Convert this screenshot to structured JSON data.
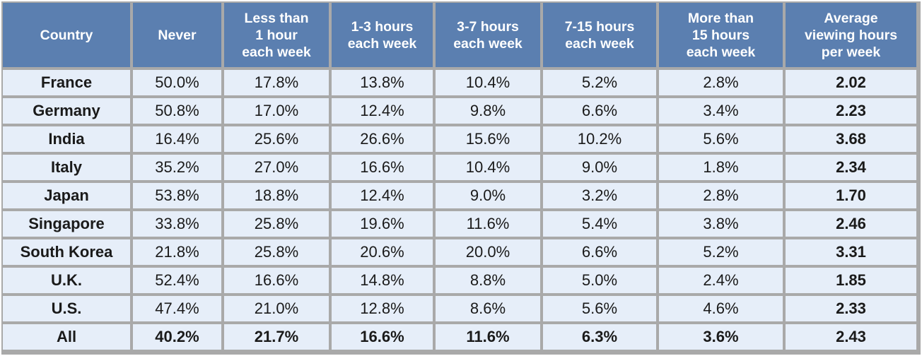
{
  "columns": [
    "Country",
    "Never",
    "Less than\n1 hour\neach week",
    "1-3 hours\neach week",
    "3-7 hours\neach week",
    "7-15 hours\neach week",
    "More than\n15 hours\neach week",
    "Average\nviewing hours\nper week"
  ],
  "rows": [
    [
      "France",
      "50.0%",
      "17.8%",
      "13.8%",
      "10.4%",
      "5.2%",
      "2.8%",
      "2.02"
    ],
    [
      "Germany",
      "50.8%",
      "17.0%",
      "12.4%",
      "9.8%",
      "6.6%",
      "3.4%",
      "2.23"
    ],
    [
      "India",
      "16.4%",
      "25.6%",
      "26.6%",
      "15.6%",
      "10.2%",
      "5.6%",
      "3.68"
    ],
    [
      "Italy",
      "35.2%",
      "27.0%",
      "16.6%",
      "10.4%",
      "9.0%",
      "1.8%",
      "2.34"
    ],
    [
      "Japan",
      "53.8%",
      "18.8%",
      "12.4%",
      "9.0%",
      "3.2%",
      "2.8%",
      "1.70"
    ],
    [
      "Singapore",
      "33.8%",
      "25.8%",
      "19.6%",
      "11.6%",
      "5.4%",
      "3.8%",
      "2.46"
    ],
    [
      "South Korea",
      "21.8%",
      "25.8%",
      "20.6%",
      "20.0%",
      "6.6%",
      "5.2%",
      "3.31"
    ],
    [
      "U.K.",
      "52.4%",
      "16.6%",
      "14.8%",
      "8.8%",
      "5.0%",
      "2.4%",
      "1.85"
    ],
    [
      "U.S.",
      "47.4%",
      "21.0%",
      "12.8%",
      "8.6%",
      "5.6%",
      "4.6%",
      "2.33"
    ],
    [
      "All",
      "40.2%",
      "21.7%",
      "16.6%",
      "11.6%",
      "6.3%",
      "3.6%",
      "2.43"
    ]
  ],
  "colors": {
    "header_bg": "#5b7fb0",
    "cell_bg": "#e6eef9",
    "grid": "#a9a9a9"
  }
}
